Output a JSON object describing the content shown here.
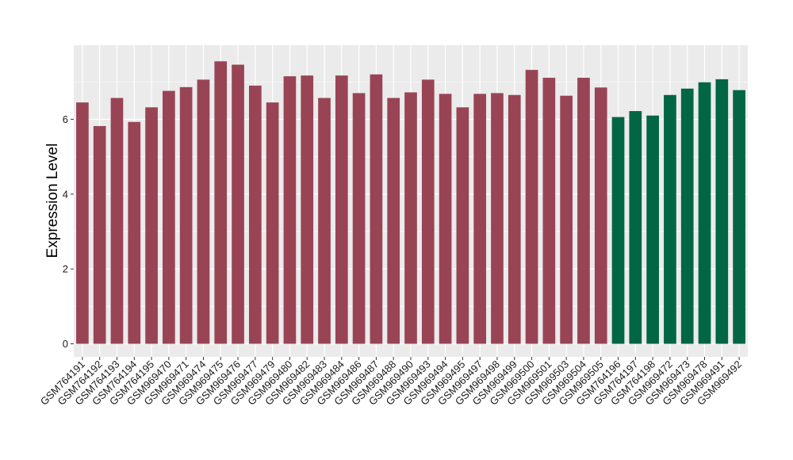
{
  "chart_data": {
    "type": "bar",
    "title": "",
    "xlabel": "",
    "ylabel": "Expression Level",
    "ylim": [
      0,
      7.8
    ],
    "yticks": [
      0,
      2,
      4,
      6
    ],
    "grid": true,
    "categories": [
      "GSM764191",
      "GSM764192",
      "GSM764193",
      "GSM764194",
      "GSM764195",
      "GSM969470",
      "GSM969471",
      "GSM969474",
      "GSM969475",
      "GSM969476",
      "GSM969477",
      "GSM969479",
      "GSM969480",
      "GSM969482",
      "GSM969483",
      "GSM969484",
      "GSM969486",
      "GSM969487",
      "GSM969488",
      "GSM969490",
      "GSM969493",
      "GSM969494",
      "GSM969495",
      "GSM969497",
      "GSM969498",
      "GSM969499",
      "GSM969500",
      "GSM969501",
      "GSM969503",
      "GSM969504",
      "GSM969505",
      "GSM764196",
      "GSM764197",
      "GSM764198",
      "GSM969472",
      "GSM969473",
      "GSM969478",
      "GSM969491",
      "GSM969492"
    ],
    "values": [
      6.45,
      5.82,
      6.57,
      5.93,
      6.32,
      6.76,
      6.86,
      7.06,
      7.55,
      7.46,
      6.9,
      6.45,
      7.15,
      7.17,
      6.57,
      7.17,
      6.7,
      7.2,
      6.57,
      6.72,
      7.06,
      6.68,
      6.32,
      6.68,
      6.7,
      6.65,
      7.32,
      7.11,
      6.63,
      7.11,
      6.85,
      6.06,
      6.22,
      6.1,
      6.65,
      6.82,
      6.99,
      7.07,
      6.78
    ],
    "bar_colors": [
      "#994455",
      "#994455",
      "#994455",
      "#994455",
      "#994455",
      "#994455",
      "#994455",
      "#994455",
      "#994455",
      "#994455",
      "#994455",
      "#994455",
      "#994455",
      "#994455",
      "#994455",
      "#994455",
      "#994455",
      "#994455",
      "#994455",
      "#994455",
      "#994455",
      "#994455",
      "#994455",
      "#994455",
      "#994455",
      "#994455",
      "#994455",
      "#994455",
      "#994455",
      "#994455",
      "#994455",
      "#006644",
      "#006644",
      "#006644",
      "#006644",
      "#006644",
      "#006644",
      "#006644",
      "#006644"
    ],
    "panel_background": "#ebebeb",
    "gridline_color": "#ffffff"
  }
}
